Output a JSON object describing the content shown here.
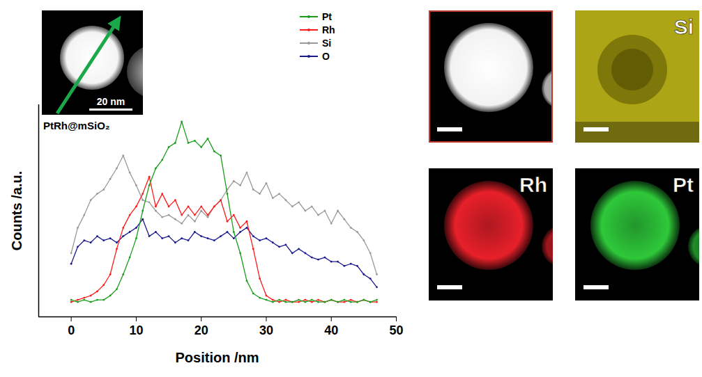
{
  "chart_data": {
    "type": "line",
    "x_label": "Position /nm",
    "y_label": "Counts /a.u.",
    "xlim": [
      -5,
      50
    ],
    "xticks": [
      0,
      10,
      20,
      30,
      40,
      50
    ],
    "ylim": [
      0,
      100
    ],
    "tick_labels": "x",
    "legend": "top-right",
    "marker": "circle",
    "x": [
      0,
      1,
      2,
      3,
      4,
      5,
      6,
      7,
      8,
      9,
      10,
      11,
      12,
      13,
      14,
      15,
      16,
      17,
      18,
      19,
      20,
      21,
      22,
      23,
      24,
      25,
      26,
      27,
      28,
      29,
      30,
      31,
      32,
      33,
      34,
      35,
      36,
      37,
      38,
      39,
      40,
      41,
      42,
      43,
      44,
      45,
      46,
      47
    ],
    "series": [
      {
        "name": "Pt",
        "color": "#1a9e1a",
        "values": [
          8,
          7,
          8,
          7,
          8,
          8,
          10,
          13,
          20,
          28,
          37,
          50,
          62,
          70,
          74,
          80,
          82,
          92,
          82,
          83,
          80,
          84,
          78,
          76,
          58,
          40,
          30,
          17,
          11,
          9,
          8,
          7,
          8,
          7,
          7,
          8,
          7,
          8,
          7,
          7,
          8,
          7,
          8,
          7,
          7,
          8,
          7,
          8
        ]
      },
      {
        "name": "Rh",
        "color": "#ff1a1a",
        "values": [
          7,
          8,
          9,
          10,
          12,
          15,
          20,
          32,
          42,
          48,
          52,
          58,
          66,
          52,
          58,
          52,
          55,
          48,
          52,
          48,
          52,
          48,
          52,
          55,
          45,
          48,
          42,
          45,
          32,
          18,
          10,
          8,
          7,
          8,
          7,
          7,
          8,
          7,
          8,
          7,
          8,
          7,
          7,
          8,
          7,
          8,
          7,
          7
        ]
      },
      {
        "name": "Si",
        "color": "#9a9a9a",
        "values": [
          30,
          42,
          48,
          55,
          58,
          60,
          65,
          70,
          76,
          68,
          62,
          55,
          54,
          50,
          47,
          48,
          46,
          44,
          48,
          45,
          50,
          47,
          52,
          55,
          60,
          64,
          62,
          68,
          60,
          58,
          63,
          56,
          58,
          55,
          52,
          54,
          50,
          52,
          48,
          50,
          44,
          50,
          46,
          42,
          40,
          36,
          30,
          20
        ]
      },
      {
        "name": "O",
        "color": "#1a1a8e",
        "values": [
          25,
          33,
          36,
          35,
          38,
          36,
          37,
          35,
          38,
          40,
          42,
          46,
          38,
          40,
          37,
          38,
          35,
          37,
          36,
          40,
          38,
          37,
          36,
          38,
          40,
          37,
          40,
          42,
          38,
          36,
          37,
          35,
          33,
          34,
          30,
          32,
          30,
          28,
          27,
          28,
          26,
          26,
          24,
          25,
          24,
          20,
          18,
          14
        ]
      }
    ]
  },
  "inset": {
    "scale_bar": "20 nm",
    "label": "PtRh@mSiO₂"
  },
  "maps": [
    {
      "label": "Si",
      "color": "#e6dc1e"
    },
    {
      "label": "Rh",
      "color": "#e8202a"
    },
    {
      "label": "Pt",
      "color": "#2ec83a"
    }
  ]
}
